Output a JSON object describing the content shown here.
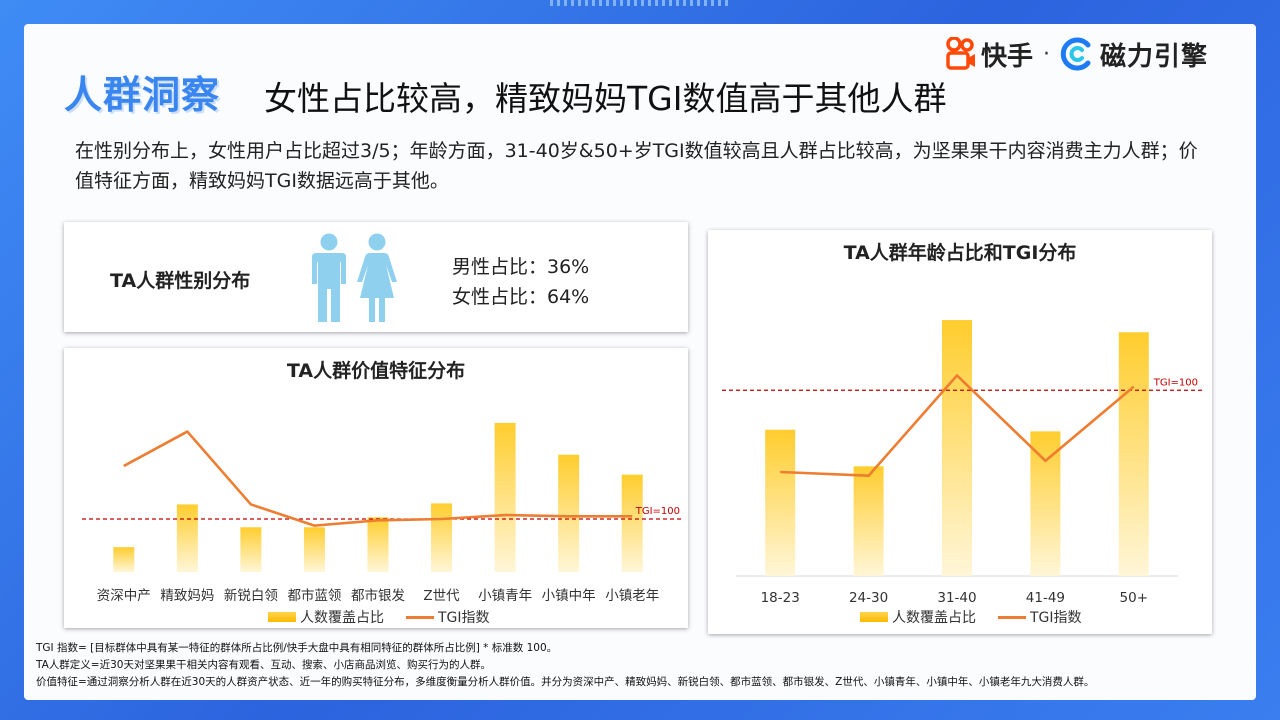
{
  "brand": {
    "kuaishou": "快手",
    "separator": "·",
    "engine": "磁力引擎"
  },
  "title": {
    "main": "人群洞察",
    "sub": "女性占比较高，精致妈妈TGI数值高于其他人群"
  },
  "description": "在性别分布上，女性用户占比超过3/5；年龄方面，31-40岁&50+岁TGI数值较高且人群占比较高，为坚果果干内容消费主力人群；价值特征方面，精致妈妈TGI数据远高于其他。",
  "gender": {
    "title": "TA人群性别分布",
    "male_label": "男性占比：36%",
    "female_label": "女性占比：64%"
  },
  "legend": {
    "bar": "人数覆盖占比",
    "line": "TGI指数"
  },
  "colors": {
    "bar": "#fbbf0a",
    "line": "#ed7d31",
    "reference": "#c00000",
    "title_accent": "#3a86f0"
  },
  "chart_data": [
    {
      "type": "bar",
      "title": "TA人群价值特征分布",
      "categories": [
        "资深中产",
        "精致妈妈",
        "新锐白领",
        "都市蓝领",
        "都市银发",
        "Z世代",
        "小镇青年",
        "小镇中年",
        "小镇老年"
      ],
      "series": [
        {
          "name": "人数覆盖占比",
          "type": "bar",
          "values": [
            2.5,
            6.8,
            4.5,
            4.5,
            5.5,
            6.9,
            15.0,
            11.8,
            9.8
          ]
        },
        {
          "name": "TGI指数",
          "type": "line",
          "values": [
            140,
            166,
            111,
            95,
            99,
            100,
            103,
            102,
            102
          ]
        }
      ],
      "reference_line": {
        "label": "TGI=100",
        "value": 100
      },
      "ylim_bar": [
        0,
        16
      ],
      "ylim_tgi": [
        60,
        180
      ]
    },
    {
      "type": "bar",
      "title": "TA人群年龄占比和TGI分布",
      "categories": [
        "18-23",
        "24-30",
        "31-40",
        "41-49",
        "50+"
      ],
      "series": [
        {
          "name": "人数覆盖占比",
          "type": "bar",
          "values": [
            18.0,
            13.5,
            31.5,
            17.8,
            30.0
          ]
        },
        {
          "name": "TGI指数",
          "type": "line",
          "values": [
            78,
            77,
            104,
            81,
            101
          ]
        }
      ],
      "reference_line": {
        "label": "TGI=100",
        "value": 100
      },
      "ylim_bar": [
        0,
        32
      ],
      "ylim_tgi": [
        50,
        120
      ]
    }
  ],
  "footnotes": [
    "TGI 指数= [目标群体中具有某一特征的群体所占比例/快手大盘中具有相同特征的群体所占比例] * 标准数 100。",
    "TA人群定义=近30天对坚果果干相关内容有观看、互动、搜索、小店商品浏览、购买行为的人群。",
    "价值特征=通过洞察分析人群在近30天的人群资产状态、近一年的购买特征分布，多维度衡量分析人群价值。并分为资深中产、精致妈妈、新锐白领、都市蓝领、都市银发、Z世代、小镇青年、小镇中年、小镇老年九大消费人群。"
  ]
}
